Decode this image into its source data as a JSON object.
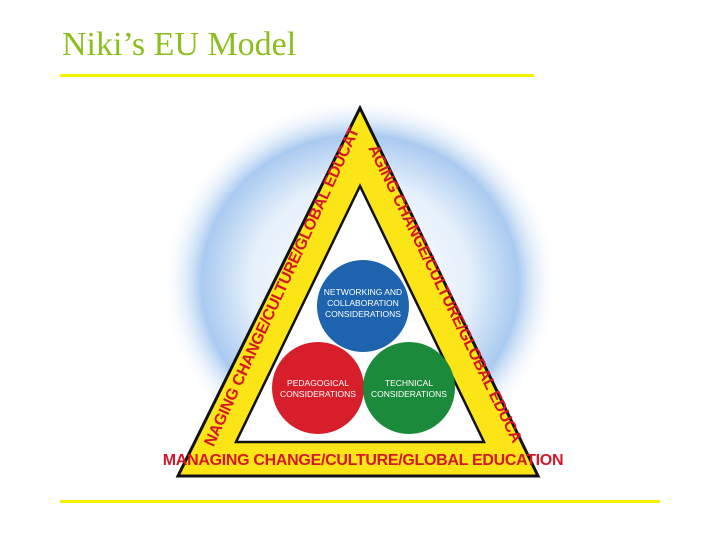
{
  "slide": {
    "title": "Niki’s EU Model"
  },
  "diagram": {
    "band_text": "MANAGING CHANGE/CULTURE/GLOBAL EDUCATION",
    "circles": {
      "top": {
        "lines": [
          "NETWORKING AND",
          "COLLABORATION",
          "CONSIDERATIONS"
        ]
      },
      "left": {
        "lines": [
          "PEDAGOGICAL",
          "CONSIDERATIONS"
        ]
      },
      "right": {
        "lines": [
          "TECHNICAL",
          "CONSIDERATIONS"
        ]
      }
    }
  },
  "colors": {
    "title": "#8cbf1e",
    "rule": "#f5f000",
    "band_yellow": "#fbe516",
    "band_text": "#d4182a",
    "outline": "#111111",
    "glow": "#7fb2e6",
    "circle_blue": "#1e63ad",
    "circle_red": "#d71f2c",
    "circle_green": "#1b8a3a"
  }
}
